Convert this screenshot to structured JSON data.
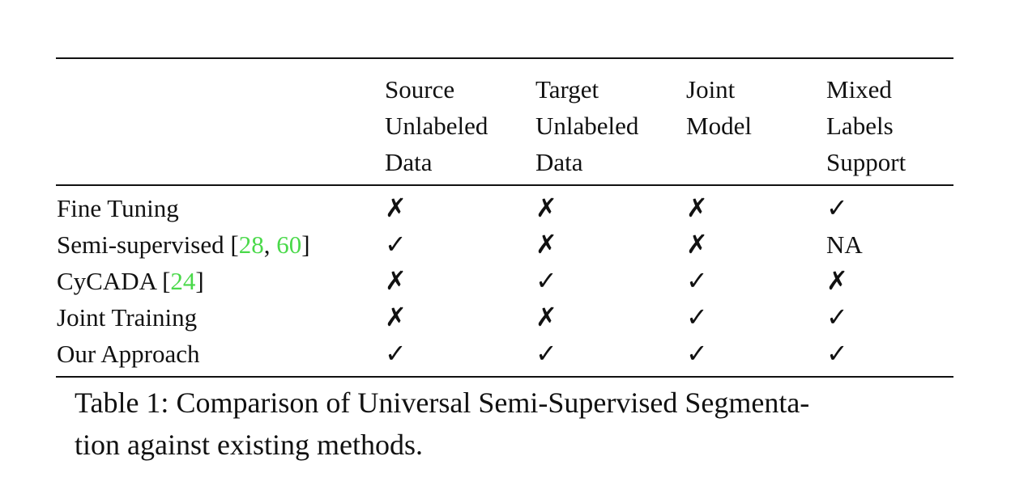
{
  "table": {
    "headers": [
      [
        "Source",
        "Unlabeled",
        "Data"
      ],
      [
        "Target",
        "Unlabeled",
        "Data"
      ],
      [
        "Joint",
        "Model",
        ""
      ],
      [
        "Mixed",
        "Labels",
        "Support"
      ]
    ],
    "rows": [
      {
        "method": "Fine Tuning",
        "refs_open": "",
        "ref1": "",
        "ref_sep": "",
        "ref2": "",
        "refs_close": "",
        "cells": [
          "✗",
          "✗",
          "✗",
          "✓"
        ]
      },
      {
        "method": "Semi-supervised ",
        "refs_open": "[",
        "ref1": "28",
        "ref_sep": ", ",
        "ref2": "60",
        "refs_close": "]",
        "cells": [
          "✓",
          "✗",
          "✗",
          "NA"
        ]
      },
      {
        "method": "CyCADA ",
        "refs_open": "[",
        "ref1": "24",
        "ref_sep": "",
        "ref2": "",
        "refs_close": "]",
        "cells": [
          "✗",
          "✓",
          "✓",
          "✗"
        ]
      },
      {
        "method": "Joint Training",
        "refs_open": "",
        "ref1": "",
        "ref_sep": "",
        "ref2": "",
        "refs_close": "",
        "cells": [
          "✗",
          "✗",
          "✓",
          "✓"
        ]
      },
      {
        "method": "Our Approach",
        "refs_open": "",
        "ref1": "",
        "ref_sep": "",
        "ref2": "",
        "refs_close": "",
        "cells": [
          "✓",
          "✓",
          "✓",
          "✓"
        ]
      }
    ]
  },
  "caption": {
    "line1": "Table 1:  Comparison of Universal Semi-Supervised Segmenta-",
    "line2": "tion against existing methods."
  },
  "colors": {
    "text": "#111111",
    "ref_link": "#4ad94a"
  }
}
